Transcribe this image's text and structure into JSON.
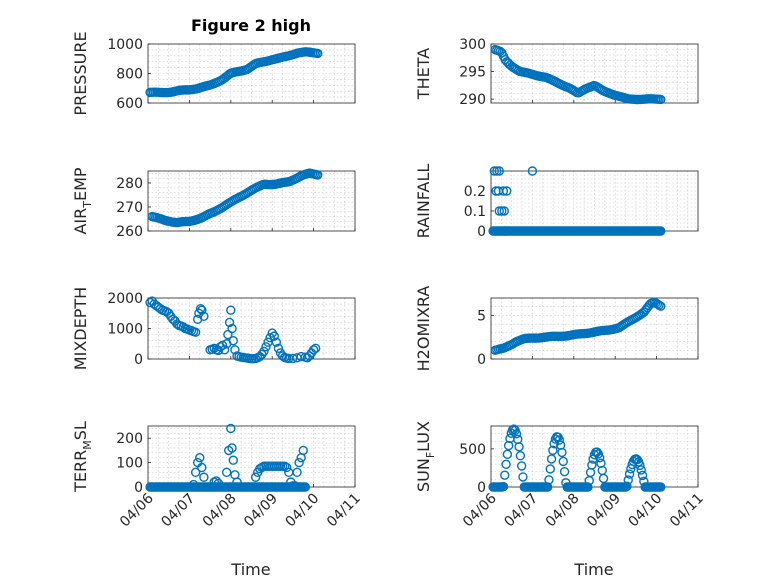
{
  "figure_title": "Figure 2 high",
  "colors": {
    "marker": "#0072bd",
    "axis": "#262626",
    "grid": "#c8c8c8"
  },
  "chart_data": [
    {
      "type": "scatter",
      "id": "pressure",
      "title": "Figure 2 high",
      "ylabel": "PRESSURE",
      "ylabel_sub": null,
      "xlabel": "",
      "xlim": [
        "04/06",
        "04/11"
      ],
      "ylim": [
        600,
        1000
      ],
      "yticks": [
        600,
        800,
        1000
      ],
      "yticklabels": [
        "600",
        "800",
        "1000"
      ],
      "grid": true,
      "anchors": [
        [
          0.05,
          672
        ],
        [
          0.3,
          670
        ],
        [
          0.55,
          675
        ],
        [
          0.8,
          685
        ],
        [
          1.0,
          690
        ],
        [
          1.2,
          700
        ],
        [
          1.5,
          720
        ],
        [
          1.8,
          760
        ],
        [
          2.0,
          800
        ],
        [
          2.2,
          815
        ],
        [
          2.4,
          830
        ],
        [
          2.6,
          865
        ],
        [
          2.8,
          880
        ],
        [
          3.0,
          895
        ],
        [
          3.2,
          905
        ],
        [
          3.4,
          920
        ],
        [
          3.6,
          940
        ],
        [
          3.8,
          945
        ],
        [
          4.1,
          938
        ]
      ],
      "x_range": [
        0.05,
        4.1
      ],
      "n_points": 100
    },
    {
      "type": "scatter",
      "id": "theta",
      "title": "",
      "ylabel": "THETA",
      "ylabel_sub": null,
      "xlabel": "",
      "xlim": [
        "04/06",
        "04/11"
      ],
      "ylim": [
        289.3,
        300
      ],
      "yticks": [
        290,
        295,
        300
      ],
      "yticklabels": [
        "290",
        "295",
        "300"
      ],
      "grid": true,
      "anchors": [
        [
          0.1,
          299
        ],
        [
          0.25,
          298.5
        ],
        [
          0.35,
          297
        ],
        [
          0.5,
          296
        ],
        [
          0.7,
          295
        ],
        [
          1.0,
          294.5
        ],
        [
          1.3,
          294
        ],
        [
          1.6,
          293
        ],
        [
          1.9,
          292
        ],
        [
          2.1,
          291
        ],
        [
          2.3,
          292
        ],
        [
          2.5,
          292.5
        ],
        [
          2.7,
          291.5
        ],
        [
          2.9,
          291
        ],
        [
          3.1,
          290.5
        ],
        [
          3.3,
          290
        ],
        [
          3.6,
          290
        ],
        [
          4.1,
          290
        ]
      ],
      "x_range": [
        0.1,
        4.1
      ],
      "n_points": 100
    },
    {
      "type": "scatter",
      "id": "air-temp",
      "title": "",
      "ylabel": "AIR",
      "ylabel_sub": "T",
      "ylabel_rest": "EMP",
      "xlabel": "",
      "xlim": [
        "04/06",
        "04/11"
      ],
      "ylim": [
        260,
        285
      ],
      "yticks": [
        260,
        270,
        280
      ],
      "yticklabels": [
        "260",
        "270",
        "280"
      ],
      "grid": true,
      "anchors": [
        [
          0.1,
          266
        ],
        [
          0.4,
          264.5
        ],
        [
          0.7,
          263.5
        ],
        [
          1.0,
          264
        ],
        [
          1.3,
          265.5
        ],
        [
          1.6,
          268
        ],
        [
          1.9,
          271
        ],
        [
          2.2,
          274
        ],
        [
          2.5,
          277
        ],
        [
          2.8,
          279.5
        ],
        [
          3.1,
          279.5
        ],
        [
          3.4,
          280.5
        ],
        [
          3.7,
          283
        ],
        [
          3.9,
          284
        ],
        [
          4.1,
          283.5
        ]
      ],
      "x_range": [
        0.1,
        4.1
      ],
      "n_points": 100
    },
    {
      "type": "scatter",
      "id": "rainfall",
      "title": "",
      "ylabel": "RAINFALL",
      "ylabel_sub": null,
      "xlabel": "",
      "xlim": [
        "04/06",
        "04/11"
      ],
      "ylim": [
        0,
        0.3
      ],
      "yticks": [
        0,
        0.1,
        0.2
      ],
      "yticklabels": [
        "0",
        "0.1",
        "0.2"
      ],
      "grid": true,
      "points": [
        [
          0.08,
          0.3
        ],
        [
          0.14,
          0.3
        ],
        [
          0.2,
          0.3
        ],
        [
          0.12,
          0.2
        ],
        [
          0.18,
          0.2
        ],
        [
          0.3,
          0.2
        ],
        [
          0.38,
          0.2
        ],
        [
          0.2,
          0.1
        ],
        [
          0.26,
          0.1
        ],
        [
          0.32,
          0.1
        ],
        [
          0.34,
          0
        ],
        [
          1.0,
          0.3
        ]
      ],
      "zero_range": [
        0.05,
        4.1
      ],
      "n_zero": 160
    },
    {
      "type": "scatter",
      "id": "mixdepth",
      "title": "",
      "ylabel": "MIXDEPTH",
      "ylabel_sub": null,
      "xlabel": "",
      "xlim": [
        "04/06",
        "04/11"
      ],
      "ylim": [
        0,
        2000
      ],
      "yticks": [
        0,
        1000,
        2000
      ],
      "yticklabels": [
        "0",
        "1000",
        "2000"
      ],
      "grid": true,
      "points": [
        [
          0.05,
          1850
        ],
        [
          0.1,
          1900
        ],
        [
          0.15,
          1800
        ],
        [
          0.2,
          1750
        ],
        [
          0.25,
          1700
        ],
        [
          0.3,
          1650
        ],
        [
          0.35,
          1600
        ],
        [
          0.4,
          1580
        ],
        [
          0.45,
          1550
        ],
        [
          0.5,
          1500
        ],
        [
          0.55,
          1400
        ],
        [
          0.6,
          1300
        ],
        [
          0.65,
          1250
        ],
        [
          0.7,
          1150
        ],
        [
          0.75,
          1100
        ],
        [
          0.8,
          1080
        ],
        [
          0.85,
          1050
        ],
        [
          0.9,
          1000
        ],
        [
          0.95,
          980
        ],
        [
          1.0,
          950
        ],
        [
          1.05,
          930
        ],
        [
          1.1,
          900
        ],
        [
          1.15,
          880
        ],
        [
          1.2,
          1300
        ],
        [
          1.23,
          1500
        ],
        [
          1.27,
          1650
        ],
        [
          1.3,
          1600
        ],
        [
          1.35,
          1400
        ],
        [
          1.5,
          300
        ],
        [
          1.55,
          320
        ],
        [
          1.6,
          350
        ],
        [
          1.65,
          300
        ],
        [
          1.7,
          280
        ],
        [
          1.75,
          400
        ],
        [
          1.8,
          450
        ],
        [
          1.85,
          300
        ],
        [
          1.9,
          500
        ],
        [
          1.93,
          800
        ],
        [
          1.97,
          1200
        ],
        [
          2.0,
          1600
        ],
        [
          2.03,
          1000
        ],
        [
          2.06,
          600
        ],
        [
          2.1,
          300
        ],
        [
          2.15,
          100
        ],
        [
          2.2,
          80
        ],
        [
          2.25,
          60
        ],
        [
          2.3,
          50
        ],
        [
          2.35,
          40
        ],
        [
          2.4,
          30
        ],
        [
          2.45,
          20
        ],
        [
          2.5,
          10
        ],
        [
          2.55,
          10
        ],
        [
          2.6,
          20
        ],
        [
          2.65,
          40
        ],
        [
          2.7,
          80
        ],
        [
          2.75,
          150
        ],
        [
          2.8,
          250
        ],
        [
          2.85,
          400
        ],
        [
          2.9,
          550
        ],
        [
          2.95,
          700
        ],
        [
          3.0,
          850
        ],
        [
          3.05,
          750
        ],
        [
          3.1,
          550
        ],
        [
          3.15,
          350
        ],
        [
          3.2,
          200
        ],
        [
          3.25,
          100
        ],
        [
          3.3,
          50
        ],
        [
          3.35,
          30
        ],
        [
          3.4,
          20
        ],
        [
          3.5,
          20
        ],
        [
          3.6,
          40
        ],
        [
          3.7,
          80
        ],
        [
          3.8,
          60
        ],
        [
          3.85,
          40
        ],
        [
          3.9,
          100
        ],
        [
          3.95,
          200
        ],
        [
          4.0,
          300
        ],
        [
          4.05,
          350
        ]
      ]
    },
    {
      "type": "scatter",
      "id": "h2omixra",
      "title": "",
      "ylabel": "H2OMIXRA",
      "ylabel_sub": null,
      "xlabel": "",
      "xlim": [
        "04/06",
        "04/11"
      ],
      "ylim": [
        0,
        7
      ],
      "yticks": [
        0,
        5
      ],
      "yticklabels": [
        "0",
        "5"
      ],
      "grid": true,
      "anchors": [
        [
          0.1,
          1.0
        ],
        [
          0.3,
          1.2
        ],
        [
          0.5,
          1.7
        ],
        [
          0.6,
          2.0
        ],
        [
          0.8,
          2.3
        ],
        [
          1.0,
          2.4
        ],
        [
          1.3,
          2.5
        ],
        [
          1.6,
          2.6
        ],
        [
          1.9,
          2.7
        ],
        [
          2.2,
          2.9
        ],
        [
          2.5,
          3.1
        ],
        [
          2.8,
          3.3
        ],
        [
          3.1,
          3.6
        ],
        [
          3.3,
          4.2
        ],
        [
          3.5,
          4.8
        ],
        [
          3.7,
          5.4
        ],
        [
          3.85,
          6.3
        ],
        [
          3.95,
          6.5
        ],
        [
          4.1,
          6.1
        ]
      ],
      "x_range": [
        0.1,
        4.1
      ],
      "n_points": 100
    },
    {
      "type": "scatter",
      "id": "terr-msl",
      "title": "",
      "ylabel": "TERR",
      "ylabel_sub": "M",
      "ylabel_rest": "SL",
      "xlabel": "Time",
      "xlim": [
        "04/06",
        "04/11"
      ],
      "ylim": [
        0,
        250
      ],
      "yticks": [
        0,
        100,
        200
      ],
      "yticklabels": [
        "0",
        "100",
        "200"
      ],
      "xticklabels": [
        "04/06",
        "04/07",
        "04/08",
        "04/09",
        "04/10",
        "04/11"
      ],
      "grid": true,
      "points": [
        [
          1.1,
          10
        ],
        [
          1.15,
          60
        ],
        [
          1.2,
          100
        ],
        [
          1.25,
          120
        ],
        [
          1.3,
          80
        ],
        [
          1.35,
          40
        ],
        [
          1.9,
          60
        ],
        [
          1.95,
          150
        ],
        [
          2.0,
          240
        ],
        [
          2.03,
          160
        ],
        [
          2.06,
          110
        ],
        [
          2.1,
          50
        ],
        [
          2.15,
          20
        ],
        [
          1.6,
          20
        ],
        [
          1.65,
          25
        ],
        [
          1.7,
          15
        ],
        [
          2.6,
          40
        ],
        [
          2.65,
          60
        ],
        [
          2.7,
          75
        ],
        [
          2.75,
          80
        ],
        [
          2.8,
          85
        ],
        [
          2.85,
          85
        ],
        [
          2.9,
          85
        ],
        [
          2.95,
          85
        ],
        [
          3.0,
          85
        ],
        [
          3.05,
          85
        ],
        [
          3.1,
          85
        ],
        [
          3.15,
          85
        ],
        [
          3.2,
          85
        ],
        [
          3.25,
          85
        ],
        [
          3.3,
          85
        ],
        [
          3.35,
          80
        ],
        [
          3.4,
          60
        ],
        [
          3.45,
          20
        ],
        [
          3.5,
          5
        ],
        [
          3.55,
          5
        ],
        [
          3.6,
          60
        ],
        [
          3.65,
          100
        ],
        [
          3.7,
          120
        ],
        [
          3.75,
          150
        ]
      ],
      "zero_range": [
        0.05,
        3.8
      ],
      "n_zero": 120
    },
    {
      "type": "scatter",
      "id": "sun-flux",
      "title": "",
      "ylabel": "SUN",
      "ylabel_sub": "F",
      "ylabel_rest": "LUX",
      "xlabel": "Time",
      "xlim": [
        "04/06",
        "04/11"
      ],
      "ylim": [
        0,
        800
      ],
      "yticks": [
        0,
        500
      ],
      "yticklabels": [
        "0",
        "500"
      ],
      "xticklabels": [
        "04/06",
        "04/07",
        "04/08",
        "04/09",
        "04/10",
        "04/11"
      ],
      "grid": true,
      "bumps": [
        [
          0.55,
          760,
          0.25
        ],
        [
          1.6,
          660,
          0.22
        ],
        [
          2.55,
          460,
          0.2
        ],
        [
          3.5,
          370,
          0.22
        ]
      ],
      "x_range": [
        0.05,
        4.1
      ],
      "n_points": 130
    }
  ]
}
